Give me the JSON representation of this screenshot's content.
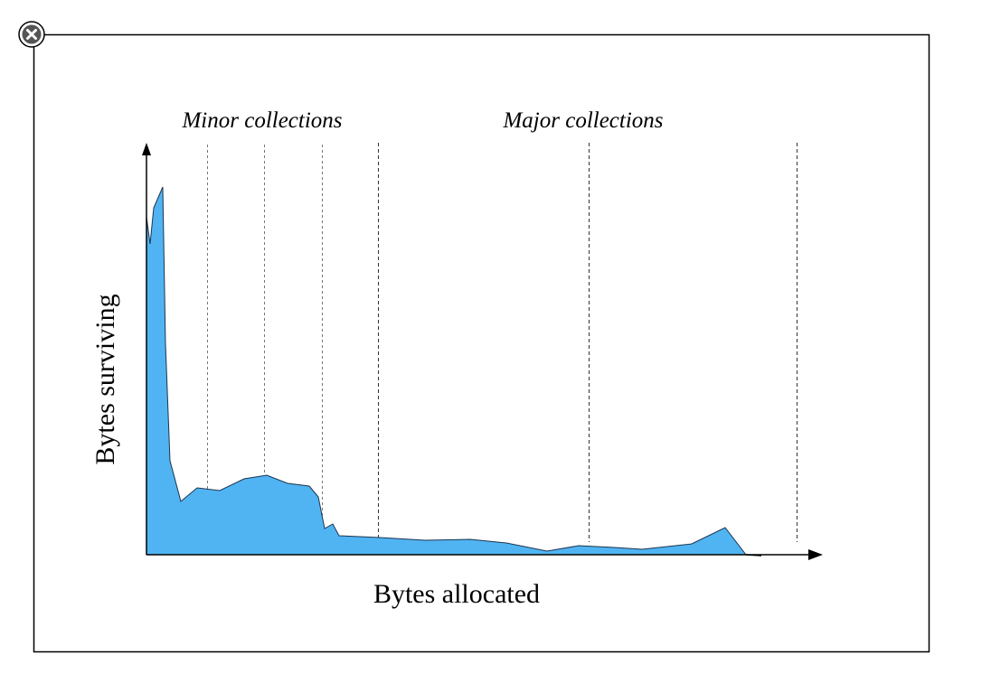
{
  "diagram": {
    "labels": {
      "minor": "Minor collections",
      "major": "Major collections",
      "y_axis": "Bytes surviving",
      "x_axis": "Bytes allocated"
    }
  }
}
